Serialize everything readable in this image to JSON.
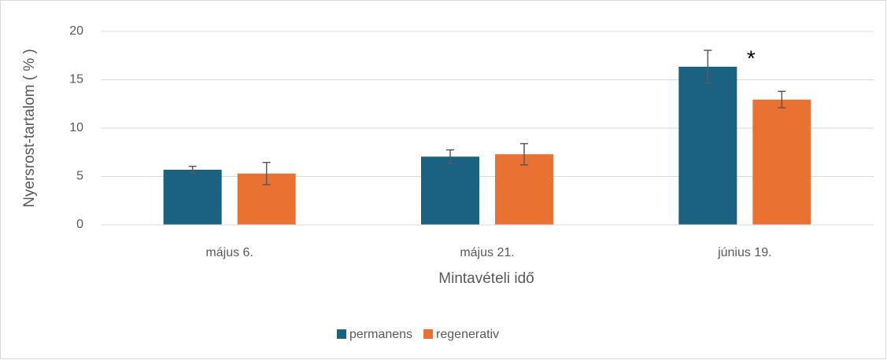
{
  "chart_data": {
    "type": "bar",
    "categories": [
      "május 6.",
      "május 21.",
      "június 19."
    ],
    "series": [
      {
        "name": "permanens",
        "color": "#1a6182",
        "values": [
          5.7,
          7.05,
          16.35
        ],
        "errors": [
          0.35,
          0.7,
          1.7
        ]
      },
      {
        "name": "regenerativ",
        "color": "#e97132",
        "values": [
          5.3,
          7.3,
          12.95
        ],
        "errors": [
          1.15,
          1.1,
          0.85
        ]
      }
    ],
    "ylabel": "Nyersrost-tartalom ( % )",
    "xlabel": "Mintavételi idő",
    "ylim": [
      0,
      20
    ],
    "yticks": [
      0,
      5,
      10,
      15,
      20
    ],
    "grid": true,
    "legend": "bottom",
    "annotations": [
      {
        "text": "*",
        "series": 0,
        "index": 2
      }
    ]
  }
}
